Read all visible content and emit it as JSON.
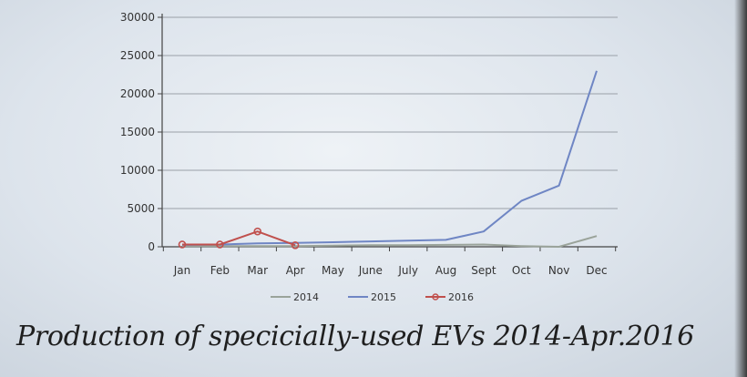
{
  "chart_data": {
    "type": "line",
    "categories": [
      "Jan",
      "Feb",
      "Mar",
      "Apr",
      "May",
      "June",
      "July",
      "Aug",
      "Sept",
      "Oct",
      "Nov",
      "Dec"
    ],
    "y_ticks": [
      "0",
      "5000",
      "10000",
      "15000",
      "20000",
      "25000",
      "30000"
    ],
    "ylim": [
      0,
      30000
    ],
    "grid": true,
    "legend_position": "bottom",
    "series": [
      {
        "name": "2014",
        "color": "#9aa39a",
        "marker": false,
        "values": [
          100,
          100,
          100,
          100,
          150,
          200,
          200,
          250,
          300,
          100,
          0,
          1400
        ]
      },
      {
        "name": "2015",
        "color": "#6f86c4",
        "marker": false,
        "values": [
          250,
          300,
          450,
          500,
          600,
          700,
          800,
          900,
          2000,
          6000,
          8000,
          23000
        ]
      },
      {
        "name": "2016",
        "color": "#c0504d",
        "marker": true,
        "values": [
          300,
          300,
          2000,
          200,
          null,
          null,
          null,
          null,
          null,
          null,
          null,
          null
        ]
      }
    ]
  },
  "caption": "Production of  specicially-used EVs 2014-Apr.2016"
}
